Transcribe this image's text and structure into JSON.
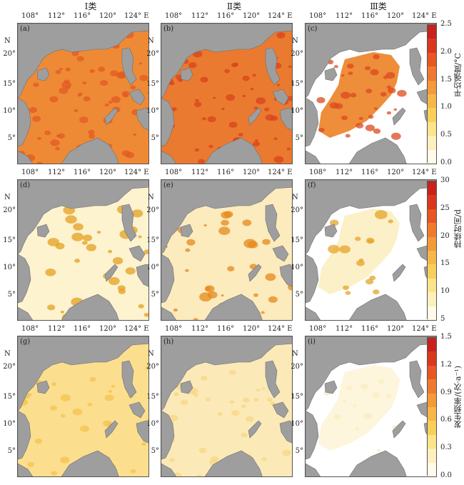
{
  "columns": [
    "Ⅰ类",
    "Ⅱ类",
    "Ⅲ类"
  ],
  "lon_ticks": [
    "108°",
    "112°",
    "116°",
    "120°",
    "124° E"
  ],
  "lat_ticks": [
    "20°",
    "15°",
    "10°",
    "5°"
  ],
  "north_label": "N",
  "panels": [
    {
      "label": "(a)",
      "row": 0,
      "col": 0,
      "fill": "#ee8a36",
      "spots": "#e25a22"
    },
    {
      "label": "(b)",
      "row": 0,
      "col": 1,
      "fill": "#ea7a30",
      "spots": "#d8431c"
    },
    {
      "label": "(c)",
      "row": 0,
      "col": 2,
      "fill": "#ee8d3a",
      "spots": "#db4a1f"
    },
    {
      "label": "(d)",
      "row": 1,
      "col": 0,
      "fill": "#fdf3cf",
      "spots": "#e3a020"
    },
    {
      "label": "(e)",
      "row": 1,
      "col": 1,
      "fill": "#fcebbd",
      "spots": "#e58a1c"
    },
    {
      "label": "(f)",
      "row": 1,
      "col": 2,
      "fill": "#fcf0c8",
      "spots": "#e7a428"
    },
    {
      "label": "(g)",
      "row": 2,
      "col": 0,
      "fill": "#fbdf8e",
      "spots": "#f5c24f"
    },
    {
      "label": "(h)",
      "row": 2,
      "col": 1,
      "fill": "#fbeab8",
      "spots": "#f8d684"
    },
    {
      "label": "(i)",
      "row": 2,
      "col": 2,
      "fill": "#fdf5dc",
      "spots": "#fbecc0"
    }
  ],
  "colorbars": [
    {
      "title": "平均强度/°C",
      "ticks": [
        "2.5",
        "2.0",
        "1.5",
        "1.0",
        "0.5",
        "0.0"
      ],
      "colors": [
        "#c7221c",
        "#d9381e",
        "#e85624",
        "#ef7a2f",
        "#f39a3b",
        "#f6b749",
        "#f8cf5d",
        "#fbe489",
        "#fdf0be",
        "#fffbe8"
      ]
    },
    {
      "title": "持续时间/d",
      "ticks": [
        "30",
        "25",
        "20",
        "15",
        "10",
        "5"
      ],
      "colors": [
        "#c7221c",
        "#d9381e",
        "#e85624",
        "#ef7a2f",
        "#f39a3b",
        "#f6b749",
        "#f8cf5d",
        "#fbe489",
        "#fdf0be",
        "#fffbe8"
      ]
    },
    {
      "title": "发生频率/(次·a⁻¹)",
      "ticks": [
        "1.5",
        "1.2",
        "0.9",
        "0.6",
        "0.3",
        "0.0"
      ],
      "colors": [
        "#c7221c",
        "#d9381e",
        "#e85624",
        "#ef7a2f",
        "#f39a3b",
        "#f6b749",
        "#f8cf5d",
        "#fbe489",
        "#fdf0be",
        "#fffbe8"
      ]
    }
  ],
  "colors": {
    "land": "#9e9e9e",
    "noData": "#ffffff",
    "frame": "#555555"
  }
}
